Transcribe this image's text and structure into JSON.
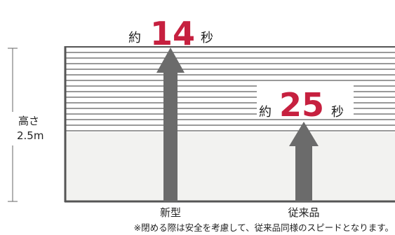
{
  "height_label": {
    "line1": "高さ",
    "line2": "2.5m"
  },
  "new_model": {
    "prefix": "約",
    "seconds": "14",
    "suffix": "秒",
    "label": "新型"
  },
  "conventional": {
    "prefix": "約",
    "seconds": "25",
    "suffix": "秒",
    "label": "従来品"
  },
  "footnote": "※閉める際は安全を考慮して、従来品同様のスピードとなります。",
  "colors": {
    "accent_red": "#c6203f",
    "arrow_gray": "#6b6b6b",
    "frame": "#555555",
    "stripe": "#333333",
    "lower_panel": "#f2f2f0"
  }
}
